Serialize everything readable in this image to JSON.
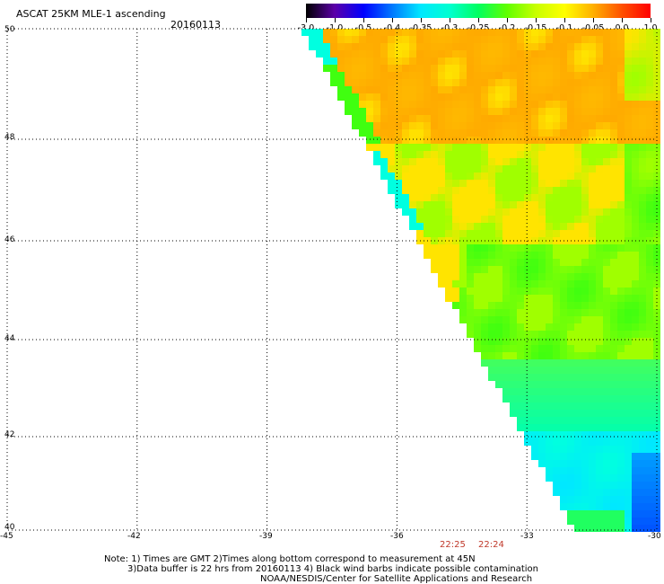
{
  "title": {
    "product": "ASCAT 25KM MLE-1 ascending",
    "date": "20160113"
  },
  "colorbar": {
    "labels": [
      "-3.0",
      "-1.0",
      "-0.5",
      "-0.4",
      "-0.35",
      "-0.3",
      "-0.25",
      "-0.2",
      "-0.15",
      "-0.1",
      "-0.05",
      "0.0",
      "1.0"
    ],
    "colors": [
      "#000000",
      "#5c00a8",
      "#0000ff",
      "#0078ff",
      "#00e8ff",
      "#00ffd0",
      "#00ff60",
      "#60ff00",
      "#c8ff00",
      "#ffff00",
      "#ffb000",
      "#ff5000",
      "#ff0000"
    ]
  },
  "map": {
    "lon_labels": [
      "-45",
      "-42",
      "-39",
      "-36",
      "-33",
      "-30"
    ],
    "lat_labels": [
      "50",
      "48",
      "46",
      "44",
      "42",
      "40"
    ],
    "lon_range": [
      -45,
      -30
    ],
    "lat_range": [
      40,
      50
    ],
    "grid": "dotted",
    "swath_field_colors": {
      "orange": "#ffa000",
      "yellow": "#ffe400",
      "light_green": "#a0ff00",
      "green": "#40ff10",
      "cyan": "#00ffe0",
      "blue": "#0050ff"
    }
  },
  "times": [
    "22:25",
    "22:24"
  ],
  "notes": {
    "line1": "Note: 1) Times are GMT 2)Times along bottom correspond to measurement at 45N",
    "line2": "3)Data buffer is 22 hrs from 20160113 4) Black wind barbs indicate possible contamination",
    "line3": "NOAA/NESDIS/Center for Satellite Applications and Research"
  }
}
